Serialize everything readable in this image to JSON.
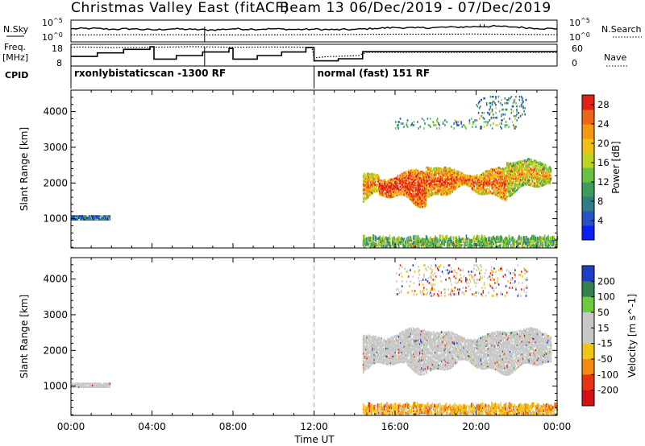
{
  "header": {
    "title_left": "Christmas Valley East (fitACF)",
    "title_right": "Beam 13  06/Dec/2019 - 07/Dec/2019"
  },
  "status_panel": {
    "left_labels": {
      "nsky": "N.Sky",
      "freq": "Freq.",
      "mhz": "[MHz]",
      "cpid": "CPID"
    },
    "right_labels": {
      "nsearch": "N.Search",
      "nave": "Nave"
    },
    "nsky_ticks": [
      "10^5",
      "10^0"
    ],
    "nsearch_ticks": [
      "10^5",
      "10^0"
    ],
    "freq_ticks": [
      "18",
      "8"
    ],
    "nave_ticks": [
      "60",
      "0"
    ],
    "cpid_segments": [
      {
        "start_hour": 0,
        "label": "rxonlybistaticscan -1300 RF"
      },
      {
        "start_hour": 12,
        "label": "normal (fast) 151 RF"
      }
    ],
    "freq_trace": [
      [
        0,
        12.5
      ],
      [
        1.3,
        12.5
      ],
      [
        1.3,
        14.5
      ],
      [
        2.6,
        14.5
      ],
      [
        2.6,
        16.5
      ],
      [
        3.9,
        16.5
      ],
      [
        3.9,
        18
      ],
      [
        4.1,
        18
      ],
      [
        4.1,
        11
      ],
      [
        5.2,
        11
      ],
      [
        5.2,
        13
      ],
      [
        6.5,
        13
      ],
      [
        6.5,
        15
      ],
      [
        7.8,
        15
      ],
      [
        7.8,
        17
      ],
      [
        8.0,
        17
      ],
      [
        8.0,
        11
      ],
      [
        9.2,
        11
      ],
      [
        9.2,
        13
      ],
      [
        10.4,
        13
      ],
      [
        10.4,
        15
      ],
      [
        11.6,
        15
      ],
      [
        11.6,
        17.5
      ],
      [
        12,
        17.5
      ],
      [
        12,
        10
      ],
      [
        13.2,
        10
      ],
      [
        13.2,
        11.2
      ],
      [
        14.4,
        11.2
      ],
      [
        14.4,
        15.2
      ],
      [
        24,
        15.2
      ]
    ],
    "nave_trace": [
      [
        0,
        58
      ],
      [
        0.5,
        59
      ],
      [
        2,
        57
      ],
      [
        4,
        58
      ],
      [
        6,
        60
      ],
      [
        8,
        58
      ],
      [
        10,
        59
      ],
      [
        11.9,
        58
      ],
      [
        12,
        22
      ],
      [
        12.6,
        26
      ],
      [
        14.2,
        30
      ],
      [
        14.6,
        41
      ],
      [
        18,
        41
      ],
      [
        24,
        41
      ]
    ],
    "nsky_trace": [
      [
        0,
        0.6
      ],
      [
        1,
        0.62
      ],
      [
        2,
        0.58
      ],
      [
        3,
        0.6
      ],
      [
        4,
        0.55
      ],
      [
        5,
        0.6
      ],
      [
        6,
        0.57
      ],
      [
        7,
        0.55
      ],
      [
        8,
        0.6
      ],
      [
        9,
        0.58
      ],
      [
        10,
        0.6
      ],
      [
        11,
        0.57
      ],
      [
        12,
        0.58
      ],
      [
        13,
        0.56
      ],
      [
        14,
        0.57
      ],
      [
        15,
        0.62
      ],
      [
        16,
        0.66
      ],
      [
        17,
        0.64
      ],
      [
        18,
        0.66
      ],
      [
        19,
        0.68
      ],
      [
        20,
        0.7
      ],
      [
        21,
        0.72
      ],
      [
        22,
        0.68
      ],
      [
        23,
        0.62
      ],
      [
        24,
        0.6
      ]
    ],
    "nsearch_trace": [
      [
        0,
        0.32
      ],
      [
        4,
        0.33
      ],
      [
        8,
        0.32
      ],
      [
        12,
        0.33
      ],
      [
        16,
        0.35
      ],
      [
        20,
        0.36
      ],
      [
        24,
        0.33
      ]
    ]
  },
  "chart_data": [
    {
      "type": "heatmap",
      "parameter": "power",
      "xlabel": "Time UT",
      "ylabel": "Slant Range [km]",
      "x_ticks": [
        "00:00",
        "04:00",
        "08:00",
        "12:00",
        "16:00",
        "20:00",
        "00:00"
      ],
      "xlim_hours": [
        0,
        24
      ],
      "ylim_km": [
        180,
        4600
      ],
      "y_ticks": [
        1000,
        2000,
        3000,
        4000
      ],
      "colorbar_label": "Power [dB]",
      "colorbar_ticks": [
        4,
        8,
        12,
        16,
        20,
        24,
        28
      ],
      "colorbar_range": [
        0,
        30
      ],
      "colorbar_colors": [
        "#0a1ef5",
        "#2851c7",
        "#2e7e86",
        "#3c9c5b",
        "#67c33f",
        "#bcd41c",
        "#f2bf14",
        "#f59710",
        "#ef6515",
        "#e32016"
      ],
      "echo_regions": [
        {
          "t0": 0.0,
          "t1": 1.9,
          "r0": 950,
          "r1": 1050,
          "level": 0.18
        },
        {
          "t0": 14.4,
          "t1": 15.2,
          "r0": 1600,
          "r1": 2300,
          "level": 0.55
        },
        {
          "t0": 15.2,
          "t1": 17.5,
          "r0": 1500,
          "r1": 2200,
          "level": 0.72
        },
        {
          "t0": 17.5,
          "t1": 21.5,
          "r0": 1700,
          "r1": 2350,
          "level": 0.62
        },
        {
          "t0": 21.5,
          "t1": 23.7,
          "r0": 1800,
          "r1": 2500,
          "level": 0.45
        },
        {
          "t0": 14.4,
          "t1": 24.0,
          "r0": 180,
          "r1": 450,
          "level": 0.4
        },
        {
          "t0": 16.0,
          "t1": 22.0,
          "r0": 3500,
          "r1": 3800,
          "level": 0.3
        },
        {
          "t0": 20.0,
          "t1": 22.5,
          "r0": 3800,
          "r1": 4400,
          "level": 0.25
        }
      ]
    },
    {
      "type": "heatmap",
      "parameter": "velocity",
      "xlabel": "Time UT",
      "ylabel": "Slant Range [km]",
      "x_ticks": [
        "00:00",
        "04:00",
        "08:00",
        "12:00",
        "16:00",
        "20:00",
        "00:00"
      ],
      "xlim_hours": [
        0,
        24
      ],
      "ylim_km": [
        180,
        4600
      ],
      "y_ticks": [
        1000,
        2000,
        3000,
        4000
      ],
      "colorbar_label": "Velocity [m s^-1]",
      "colorbar_ticks": [
        200,
        100,
        50,
        15,
        -15,
        -50,
        -100,
        -200
      ],
      "colorbar_colors": [
        "#1f3ec5",
        "#33804d",
        "#6acc3c",
        "#c8c8c8",
        "#c8c8c8",
        "#f2c414",
        "#f58a10",
        "#e83414",
        "#d60f14"
      ],
      "echo_regions": [
        {
          "t0": 0.0,
          "t1": 1.9,
          "r0": 950,
          "r1": 1050,
          "velocity_class": "ground"
        },
        {
          "t0": 14.4,
          "t1": 23.7,
          "r0": 1500,
          "r1": 2450,
          "velocity_class": "ground"
        },
        {
          "t0": 14.4,
          "t1": 24.0,
          "r0": 180,
          "r1": 450,
          "velocity_class": "negative"
        },
        {
          "t0": 16.0,
          "t1": 22.5,
          "r0": 3500,
          "r1": 4400,
          "velocity_class": "mixed"
        }
      ]
    }
  ]
}
